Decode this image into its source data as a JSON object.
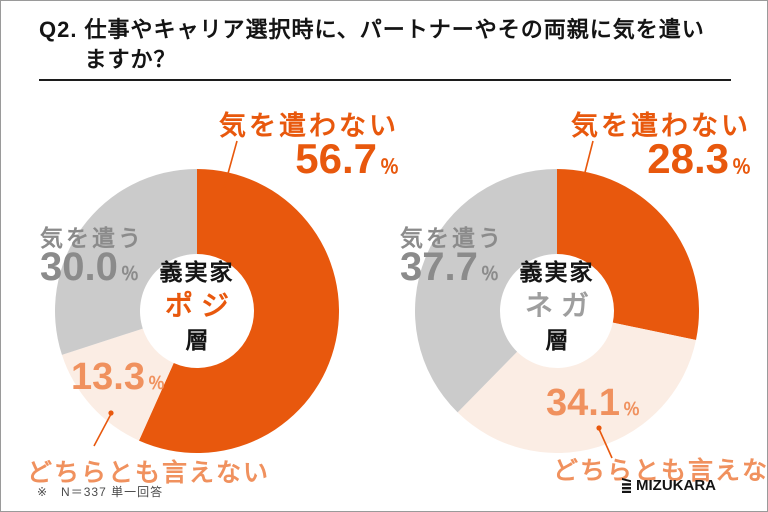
{
  "header": {
    "prefix": "Q2.",
    "title_line1": "仕事やキャリア選択時に、パートナーやその両親に気を遣い",
    "title_line2": "ますか？"
  },
  "percent_sign": "％",
  "chart_data": [
    {
      "type": "pie",
      "subtype": "donut",
      "group": "義実家ポジ層",
      "center_label": {
        "line1": "義実家",
        "line2": "ポジ",
        "line3": "層"
      },
      "clockwise_from_top": true,
      "slices": [
        {
          "label": "気を遣わない",
          "value": 56.7,
          "display": "56.7",
          "color": "#E8580D"
        },
        {
          "label": "どちらとも言えない",
          "value": 13.3,
          "display": "13.3",
          "color": "#FBEDE4"
        },
        {
          "label": "気を遣う",
          "value": 30.0,
          "display": "30.0",
          "color": "#CBCBCB"
        }
      ]
    },
    {
      "type": "pie",
      "subtype": "donut",
      "group": "義実家ネガ層",
      "center_label": {
        "line1": "義実家",
        "line2": "ネガ",
        "line3": "層"
      },
      "clockwise_from_top": true,
      "slices": [
        {
          "label": "気を遣わない",
          "value": 28.3,
          "display": "28.3",
          "color": "#E8580D"
        },
        {
          "label": "どちらとも言えない",
          "value": 34.1,
          "display": "34.1",
          "color": "#FBEDE4"
        },
        {
          "label": "気を遣う",
          "value": 37.7,
          "display": "37.7",
          "color": "#CBCBCB"
        }
      ]
    }
  ],
  "colors": {
    "accent_orange": "#E8580D",
    "light_orange_fill": "#FBEDE4",
    "gray_fill": "#CBCBCB",
    "gray_text": "#8B8B8B",
    "soft_orange_text": "#F0915E",
    "center_neg_text": "#9E9E9E"
  },
  "footer": {
    "note": "※　N＝337 単一回答",
    "logo_text": "MIZUKARA"
  }
}
